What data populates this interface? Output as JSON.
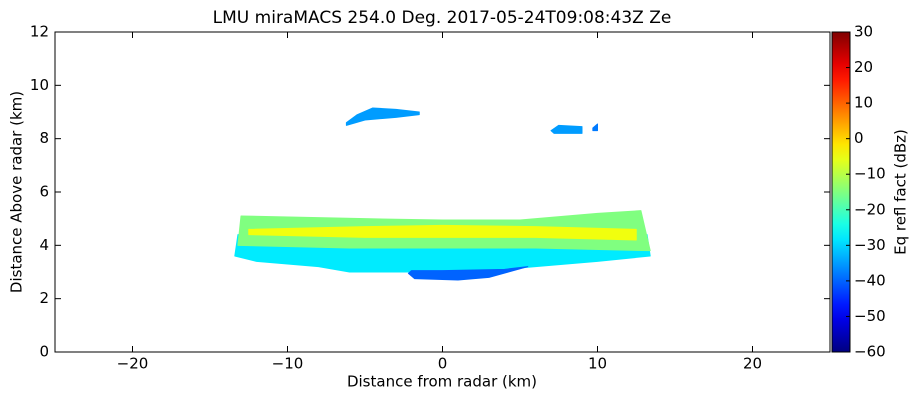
{
  "chart_data": {
    "type": "heatmap",
    "title": "LMU miraMACS 254.0 Deg. 2017-05-24T09:08:43Z  Ze",
    "x_label": "Distance from radar (km)",
    "y_label": "Distance Above radar  (km)",
    "colorbar_label": "Eq refl fact (dBz)",
    "colormap": "jet",
    "xlim": [
      -25,
      25
    ],
    "ylim": [
      0,
      12
    ],
    "clim": [
      -60,
      30
    ],
    "xticks": [
      {
        "value": -20,
        "label": "−20"
      },
      {
        "value": -10,
        "label": "−10"
      },
      0,
      10,
      20
    ],
    "yticks": [
      0,
      2,
      4,
      6,
      8,
      10,
      12
    ],
    "cticks": [
      30,
      20,
      10,
      0,
      {
        "value": -10,
        "label": "−10"
      },
      {
        "value": -20,
        "label": "−20"
      },
      {
        "value": -30,
        "label": "−30"
      },
      {
        "value": -40,
        "label": "−40"
      },
      {
        "value": -50,
        "label": "−50"
      },
      {
        "value": -60,
        "label": "−60"
      }
    ],
    "regions": [
      {
        "x": [
          -13.4,
          -12,
          -8,
          -6,
          -2,
          2,
          6,
          10,
          13.4,
          13.2,
          -13.2
        ],
        "y": [
          3.6,
          3.4,
          3.2,
          3.0,
          3.0,
          3.0,
          3.2,
          3.4,
          3.6,
          4.4,
          4.4
        ],
        "value": -28
      },
      {
        "x": [
          -2.2,
          -1.8,
          1,
          3,
          5.5,
          4,
          0,
          -2
        ],
        "y": [
          2.95,
          2.75,
          2.7,
          2.8,
          3.2,
          3.1,
          3.05,
          3.05
        ],
        "value": -40
      },
      {
        "x": [
          -13.2,
          -13,
          -5,
          0,
          5,
          10,
          12.8,
          13.4,
          6,
          0,
          -6
        ],
        "y": [
          4.0,
          5.1,
          5.0,
          4.95,
          4.95,
          5.2,
          5.3,
          3.8,
          3.9,
          3.9,
          3.9
        ],
        "value": -15
      },
      {
        "x": [
          -12.5,
          -5,
          0,
          6,
          12.5,
          12.5,
          6,
          0,
          -5,
          -12.5
        ],
        "y": [
          4.6,
          4.7,
          4.75,
          4.7,
          4.6,
          4.2,
          4.3,
          4.3,
          4.3,
          4.4
        ],
        "value": -5
      },
      {
        "x": [
          -6.2,
          -5.5,
          -4.5,
          -3,
          -1.5,
          -1.5,
          -3,
          -5,
          -6.2
        ],
        "y": [
          8.6,
          8.9,
          9.15,
          9.1,
          9.0,
          8.9,
          8.8,
          8.7,
          8.5
        ],
        "value": -35
      },
      {
        "x": [
          7,
          7.5,
          9,
          9,
          7.2
        ],
        "y": [
          8.3,
          8.5,
          8.45,
          8.2,
          8.2
        ],
        "value": -35
      },
      {
        "x": [
          9.7,
          10,
          10,
          9.7
        ],
        "y": [
          8.4,
          8.55,
          8.3,
          8.3
        ],
        "value": -38
      }
    ]
  }
}
